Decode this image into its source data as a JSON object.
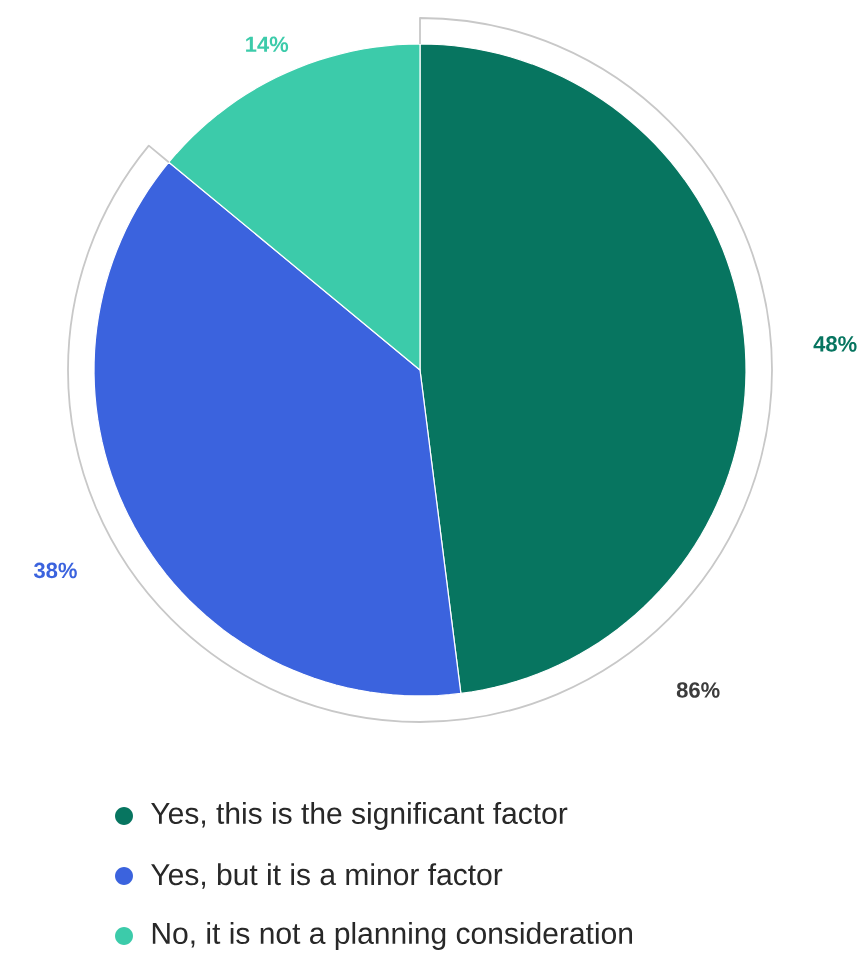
{
  "chart_data": {
    "type": "pie",
    "categories": [
      "Yes, this is the significant factor",
      "Yes, but it is a minor factor",
      "No, it is not a planning consideration"
    ],
    "values": [
      48,
      38,
      14
    ],
    "colors": [
      "#077560",
      "#3b63de",
      "#3ccbaa"
    ],
    "value_labels": [
      "48%",
      "38%",
      "14%"
    ],
    "legend": "bottom",
    "annotations": [
      "86%"
    ]
  }
}
